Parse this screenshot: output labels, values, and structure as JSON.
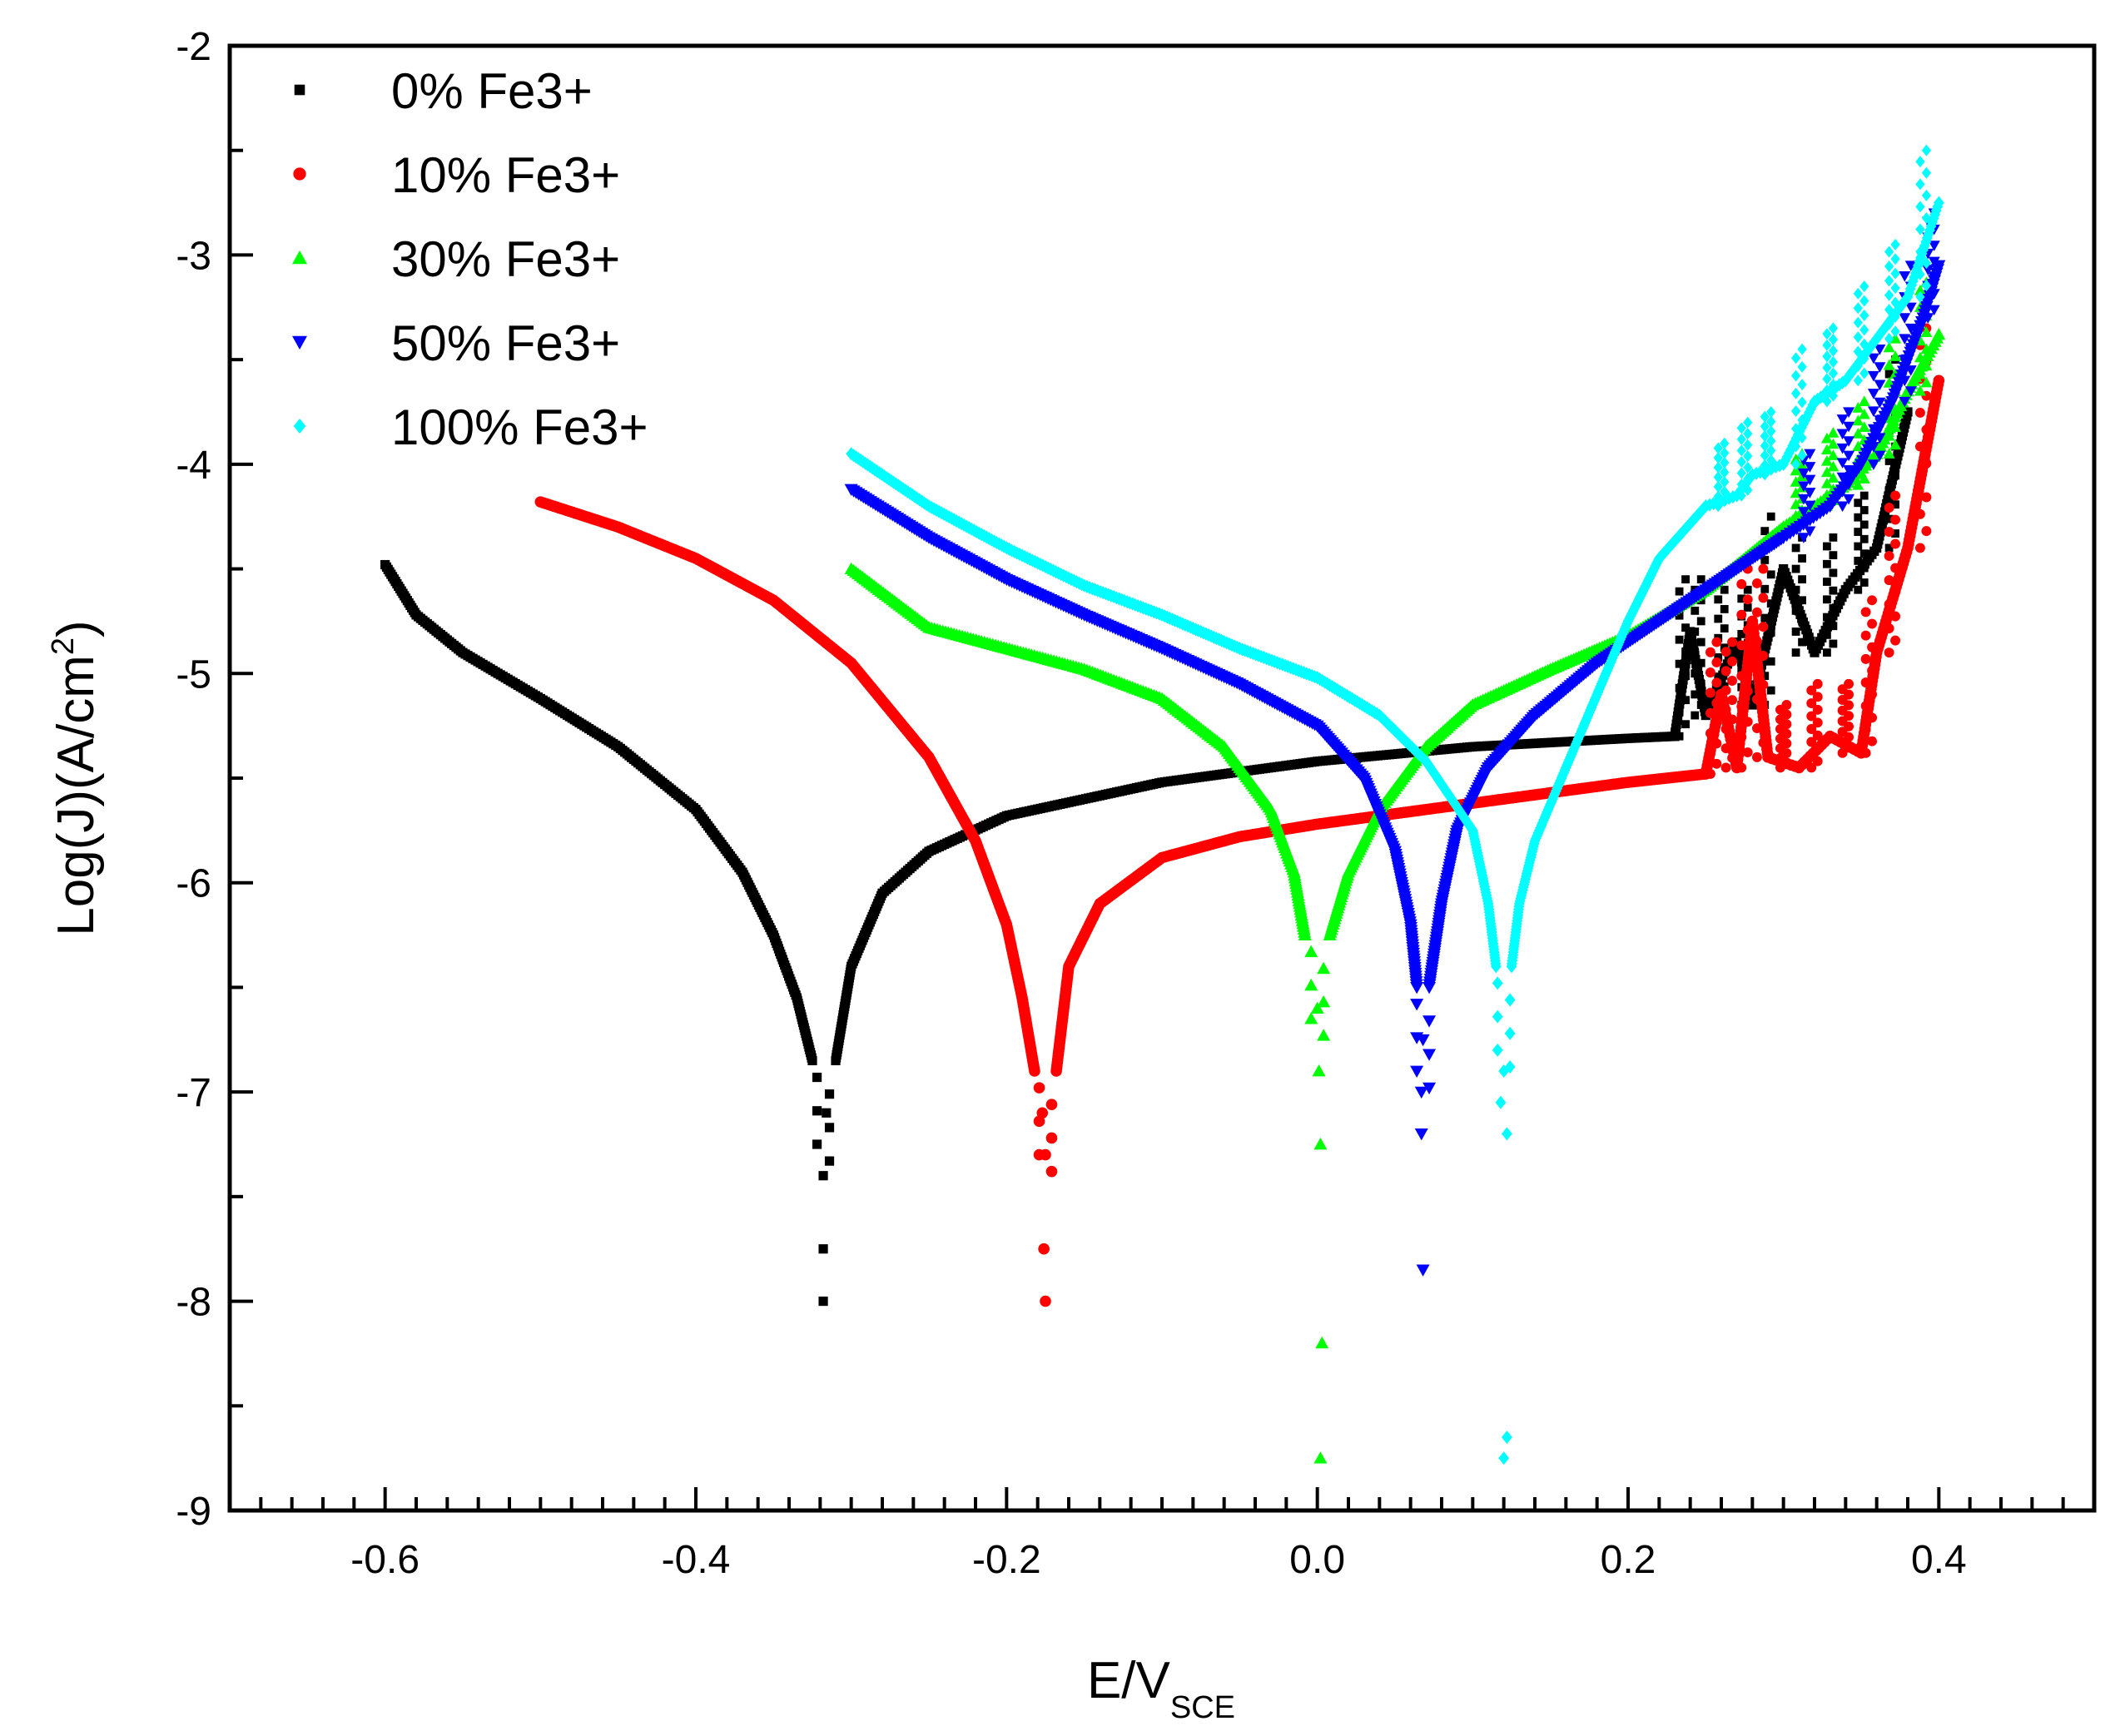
{
  "chart_data": {
    "type": "scatter",
    "title": "",
    "xlabel_main": "E/V",
    "xlabel_sub": "SCE",
    "ylabel_main": "Log(J)(A/cm",
    "ylabel_sup": "2",
    "ylabel_end": ")",
    "xlim": [
      -0.7,
      0.5
    ],
    "ylim": [
      -9,
      -2
    ],
    "xticks": [
      -0.6,
      -0.4,
      -0.2,
      0.0,
      0.2,
      0.4
    ],
    "xtick_labels": [
      "-0.6",
      "-0.4",
      "-0.2",
      "0.0",
      "0.2",
      "0.4"
    ],
    "yticks": [
      -9,
      -8,
      -7,
      -6,
      -5,
      -4,
      -3,
      -2
    ],
    "ytick_labels": [
      "-9",
      "-8",
      "-7",
      "-6",
      "-5",
      "-4",
      "-3",
      "-2"
    ],
    "legend_position": "top-left",
    "series": [
      {
        "name": "0% Fe3+",
        "color": "#000000",
        "marker": "square",
        "ecorr": -0.318,
        "min_log_j": -8.0,
        "deep_points": [
          [
            -0.318,
            -8.0
          ],
          [
            -0.318,
            -7.75
          ],
          [
            -0.318,
            -7.4
          ],
          [
            -0.316,
            -7.1
          ]
        ],
        "cathodic": [
          [
            -0.6,
            -4.48
          ],
          [
            -0.58,
            -4.72
          ],
          [
            -0.55,
            -4.9
          ],
          [
            -0.5,
            -5.12
          ],
          [
            -0.45,
            -5.35
          ],
          [
            -0.4,
            -5.65
          ],
          [
            -0.37,
            -5.95
          ],
          [
            -0.35,
            -6.25
          ],
          [
            -0.335,
            -6.55
          ],
          [
            -0.325,
            -6.85
          ]
        ],
        "anodic": [
          [
            -0.31,
            -6.85
          ],
          [
            -0.3,
            -6.4
          ],
          [
            -0.28,
            -6.05
          ],
          [
            -0.25,
            -5.85
          ],
          [
            -0.2,
            -5.68
          ],
          [
            -0.1,
            -5.52
          ],
          [
            0.0,
            -5.42
          ],
          [
            0.1,
            -5.35
          ],
          [
            0.2,
            -5.31
          ],
          [
            0.23,
            -5.3
          ]
        ],
        "noisy": [
          [
            0.23,
            -5.3
          ],
          [
            0.24,
            -4.8
          ],
          [
            0.25,
            -5.2
          ],
          [
            0.27,
            -4.85
          ],
          [
            0.28,
            -5.15
          ],
          [
            0.3,
            -4.5
          ],
          [
            0.32,
            -4.9
          ],
          [
            0.34,
            -4.6
          ],
          [
            0.36,
            -4.4
          ],
          [
            0.38,
            -3.75
          ]
        ]
      },
      {
        "name": "10% Fe3+",
        "color": "#ff0000",
        "marker": "circle",
        "ecorr": -0.175,
        "min_log_j": -8.0,
        "deep_points": [
          [
            -0.175,
            -8.0
          ],
          [
            -0.176,
            -7.75
          ],
          [
            -0.175,
            -7.3
          ],
          [
            -0.177,
            -7.1
          ]
        ],
        "cathodic": [
          [
            -0.5,
            -4.18
          ],
          [
            -0.45,
            -4.3
          ],
          [
            -0.4,
            -4.45
          ],
          [
            -0.35,
            -4.65
          ],
          [
            -0.3,
            -4.95
          ],
          [
            -0.25,
            -5.4
          ],
          [
            -0.22,
            -5.8
          ],
          [
            -0.2,
            -6.2
          ],
          [
            -0.19,
            -6.55
          ],
          [
            -0.182,
            -6.9
          ]
        ],
        "anodic": [
          [
            -0.168,
            -6.9
          ],
          [
            -0.16,
            -6.4
          ],
          [
            -0.14,
            -6.1
          ],
          [
            -0.1,
            -5.88
          ],
          [
            -0.05,
            -5.78
          ],
          [
            0.0,
            -5.72
          ],
          [
            0.1,
            -5.62
          ],
          [
            0.2,
            -5.52
          ],
          [
            0.25,
            -5.48
          ]
        ],
        "noisy": [
          [
            0.25,
            -5.48
          ],
          [
            0.26,
            -5.1
          ],
          [
            0.27,
            -5.45
          ],
          [
            0.28,
            -4.75
          ],
          [
            0.29,
            -5.4
          ],
          [
            0.31,
            -5.45
          ],
          [
            0.33,
            -5.3
          ],
          [
            0.35,
            -5.38
          ],
          [
            0.36,
            -4.9
          ],
          [
            0.38,
            -4.4
          ],
          [
            0.4,
            -3.6
          ]
        ]
      },
      {
        "name": "30% Fe3+",
        "color": "#00ff00",
        "marker": "triangle-up",
        "ecorr": 0.0,
        "min_log_j": -8.75,
        "deep_points": [
          [
            0.002,
            -8.75
          ],
          [
            0.003,
            -8.2
          ],
          [
            0.002,
            -7.25
          ],
          [
            0.001,
            -6.9
          ],
          [
            0.0,
            -6.6
          ]
        ],
        "cathodic": [
          [
            -0.3,
            -4.5
          ],
          [
            -0.25,
            -4.78
          ],
          [
            -0.2,
            -4.88
          ],
          [
            -0.15,
            -4.98
          ],
          [
            -0.1,
            -5.12
          ],
          [
            -0.06,
            -5.35
          ],
          [
            -0.03,
            -5.65
          ],
          [
            -0.015,
            -5.95
          ],
          [
            -0.008,
            -6.25
          ]
        ],
        "anodic": [
          [
            0.008,
            -6.25
          ],
          [
            0.02,
            -5.95
          ],
          [
            0.04,
            -5.65
          ],
          [
            0.07,
            -5.35
          ],
          [
            0.1,
            -5.15
          ],
          [
            0.15,
            -4.98
          ],
          [
            0.2,
            -4.82
          ],
          [
            0.25,
            -4.6
          ],
          [
            0.3,
            -4.3
          ]
        ],
        "noisy": [
          [
            0.3,
            -4.3
          ],
          [
            0.32,
            -4.2
          ],
          [
            0.34,
            -4.1
          ],
          [
            0.36,
            -3.95
          ],
          [
            0.38,
            -3.65
          ],
          [
            0.4,
            -3.38
          ]
        ]
      },
      {
        "name": "50% Fe3+",
        "color": "#0000ff",
        "marker": "triangle-down",
        "ecorr": 0.068,
        "min_log_j": -7.85,
        "deep_points": [
          [
            0.068,
            -7.85
          ],
          [
            0.067,
            -7.2
          ],
          [
            0.067,
            -7.0
          ],
          [
            0.068,
            -6.75
          ]
        ],
        "cathodic": [
          [
            -0.3,
            -4.12
          ],
          [
            -0.25,
            -4.35
          ],
          [
            -0.2,
            -4.55
          ],
          [
            -0.15,
            -4.72
          ],
          [
            -0.1,
            -4.88
          ],
          [
            -0.05,
            -5.05
          ],
          [
            0.0,
            -5.25
          ],
          [
            0.03,
            -5.5
          ],
          [
            0.05,
            -5.85
          ],
          [
            0.06,
            -6.2
          ],
          [
            0.064,
            -6.5
          ]
        ],
        "anodic": [
          [
            0.072,
            -6.5
          ],
          [
            0.08,
            -6.1
          ],
          [
            0.09,
            -5.75
          ],
          [
            0.11,
            -5.45
          ],
          [
            0.14,
            -5.2
          ],
          [
            0.18,
            -4.95
          ],
          [
            0.2,
            -4.85
          ],
          [
            0.25,
            -4.6
          ],
          [
            0.3,
            -4.35
          ]
        ],
        "noisy": [
          [
            0.3,
            -4.35
          ],
          [
            0.33,
            -4.2
          ],
          [
            0.35,
            -4.0
          ],
          [
            0.37,
            -3.7
          ],
          [
            0.39,
            -3.3
          ],
          [
            0.4,
            -3.05
          ]
        ]
      },
      {
        "name": "100% Fe3+",
        "color": "#00ffff",
        "marker": "diamond",
        "ecorr": 0.12,
        "min_log_j": -8.75,
        "deep_points": [
          [
            0.12,
            -8.75
          ],
          [
            0.122,
            -8.65
          ],
          [
            0.122,
            -7.2
          ],
          [
            0.118,
            -7.05
          ],
          [
            0.12,
            -6.9
          ]
        ],
        "cathodic": [
          [
            -0.3,
            -3.95
          ],
          [
            -0.25,
            -4.2
          ],
          [
            -0.2,
            -4.4
          ],
          [
            -0.15,
            -4.58
          ],
          [
            -0.1,
            -4.72
          ],
          [
            -0.05,
            -4.88
          ],
          [
            0.0,
            -5.02
          ],
          [
            0.04,
            -5.2
          ],
          [
            0.07,
            -5.42
          ],
          [
            0.1,
            -5.75
          ],
          [
            0.11,
            -6.1
          ],
          [
            0.115,
            -6.4
          ]
        ],
        "anodic": [
          [
            0.125,
            -6.4
          ],
          [
            0.13,
            -6.1
          ],
          [
            0.14,
            -5.8
          ],
          [
            0.16,
            -5.45
          ],
          [
            0.18,
            -5.1
          ],
          [
            0.2,
            -4.75
          ],
          [
            0.22,
            -4.45
          ],
          [
            0.25,
            -4.2
          ]
        ],
        "noisy": [
          [
            0.25,
            -4.2
          ],
          [
            0.27,
            -4.15
          ],
          [
            0.28,
            -4.05
          ],
          [
            0.3,
            -4.0
          ],
          [
            0.32,
            -3.7
          ],
          [
            0.34,
            -3.6
          ],
          [
            0.36,
            -3.4
          ],
          [
            0.38,
            -3.2
          ],
          [
            0.4,
            -2.75
          ]
        ]
      }
    ]
  }
}
